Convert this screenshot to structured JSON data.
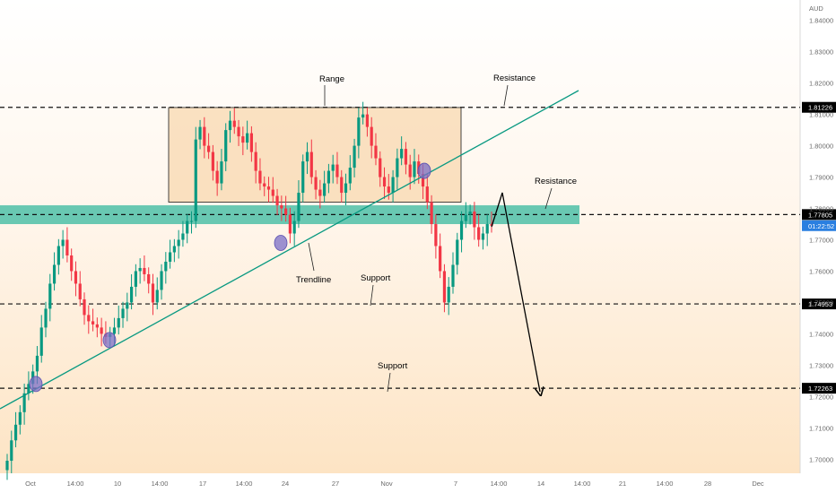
{
  "chart_data": {
    "type": "candlestick",
    "currency": "AUD",
    "ylim": [
      1.6955,
      1.8465
    ],
    "price_ticks": [
      "1.84000",
      "1.83000",
      "1.82000",
      "1.81000",
      "1.80000",
      "1.79000",
      "1.78000",
      "1.77000",
      "1.76000",
      "1.75000",
      "1.74000",
      "1.73000",
      "1.72000",
      "1.71000",
      "1.70000"
    ],
    "time_ticks": [
      "Oct",
      "14:00",
      "10",
      "14:00",
      "17",
      "14:00",
      "24",
      "27",
      "Nov",
      "7",
      "14:00",
      "14",
      "14:00",
      "21",
      "14:00",
      "28",
      "Dec"
    ],
    "levels": [
      {
        "label": "1.81226",
        "value": 1.81226,
        "style": "dashed"
      },
      {
        "label": "1.77805",
        "value": 1.77805,
        "style": "dashed"
      },
      {
        "label": "1.74953",
        "value": 1.74953,
        "style": "dashed"
      },
      {
        "label": "1.72263",
        "value": 1.72263,
        "style": "dashed"
      }
    ],
    "countdown": "01:22:52",
    "last_price": 1.7745,
    "resistance_zone": [
      1.775,
      1.781
    ],
    "range_box": {
      "top": 1.8122,
      "bottom": 1.782
    },
    "candle_closes": [
      1.6995,
      1.706,
      1.711,
      1.715,
      1.721,
      1.724,
      1.728,
      1.733,
      1.742,
      1.748,
      1.756,
      1.762,
      1.768,
      1.77,
      1.765,
      1.76,
      1.756,
      1.751,
      1.746,
      1.744,
      1.743,
      1.742,
      1.74,
      1.739,
      1.74,
      1.742,
      1.745,
      1.748,
      1.75,
      1.755,
      1.76,
      1.761,
      1.759,
      1.756,
      1.75,
      1.754,
      1.76,
      1.763,
      1.766,
      1.768,
      1.77,
      1.772,
      1.776,
      1.776,
      1.802,
      1.806,
      1.8,
      1.798,
      1.792,
      1.788,
      1.795,
      1.805,
      1.808,
      1.806,
      1.803,
      1.801,
      1.804,
      1.798,
      1.792,
      1.788,
      1.787,
      1.786,
      1.784,
      1.781,
      1.78,
      1.778,
      1.772,
      1.776,
      1.785,
      1.795,
      1.798,
      1.79,
      1.786,
      1.784,
      1.788,
      1.792,
      1.794,
      1.79,
      1.785,
      1.788,
      1.793,
      1.8,
      1.809,
      1.81,
      1.806,
      1.8,
      1.796,
      1.79,
      1.787,
      1.785,
      1.79,
      1.796,
      1.799,
      1.794,
      1.79,
      1.795,
      1.791,
      1.787,
      1.782,
      1.775,
      1.768,
      1.76,
      1.75,
      1.755,
      1.762,
      1.77,
      1.776,
      1.778,
      1.779,
      1.774,
      1.77,
      1.772,
      1.775,
      1.7745
    ],
    "markers": [
      {
        "name": "touch-1",
        "x": 1.724
      },
      {
        "name": "touch-2",
        "x": 1.738
      },
      {
        "name": "touch-3",
        "x": 1.769
      },
      {
        "name": "touch-4",
        "x": 1.792
      }
    ],
    "annotations": [
      {
        "name": "range-label",
        "text": "Range"
      },
      {
        "name": "resistance-top-label",
        "text": "Resistance"
      },
      {
        "name": "resistance-mid-label",
        "text": "Resistance"
      },
      {
        "name": "trendline-label",
        "text": "Trendline"
      },
      {
        "name": "support-mid-label",
        "text": "Support"
      },
      {
        "name": "support-low-label",
        "text": "Support"
      }
    ],
    "colors": {
      "up": "#089981",
      "down": "#f23645",
      "zone": "#4fbfa8",
      "range_box": "#f8d6ab",
      "trendline": "#089981",
      "marker": "#7b6fc7",
      "countdown_bg": "#2a7fe0"
    }
  }
}
